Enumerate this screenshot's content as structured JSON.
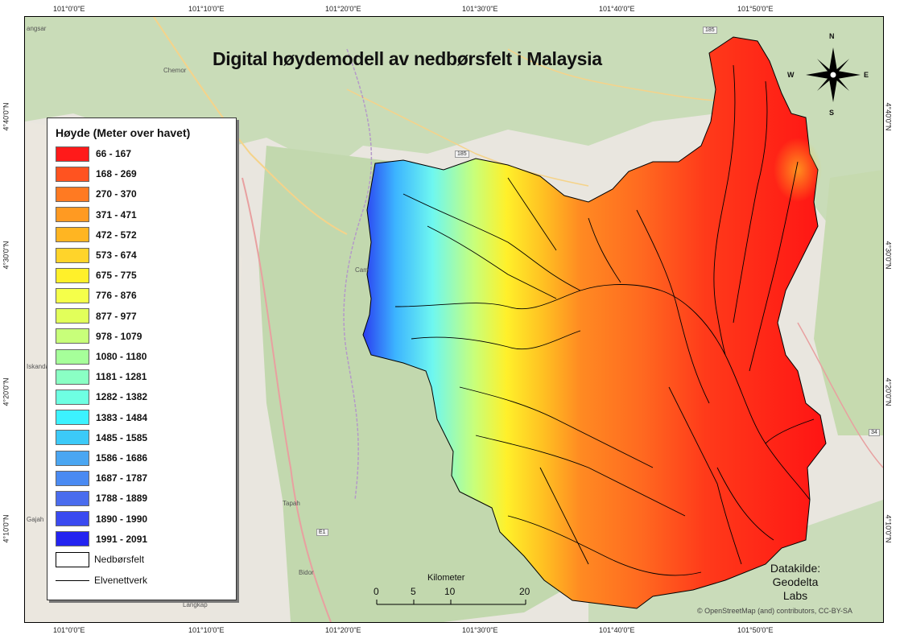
{
  "title": "Digital høydemodell av nedbørsfelt i Malaysia",
  "graticule": {
    "longitudes": [
      "101°0'0\"E",
      "101°10'0\"E",
      "101°20'0\"E",
      "101°30'0\"E",
      "101°40'0\"E",
      "101°50'0\"E"
    ],
    "latitudes": [
      "4°40'0\"N",
      "4°30'0\"N",
      "4°20'0\"N",
      "4°10'0\"N"
    ]
  },
  "legend": {
    "title": "Høyde (Meter over havet)",
    "classes": [
      {
        "label": "66 - 167",
        "color": "#ff1a1a"
      },
      {
        "label": "168 - 269",
        "color": "#ff5320"
      },
      {
        "label": "270 - 370",
        "color": "#ff7a22"
      },
      {
        "label": "371 - 471",
        "color": "#ff9a22"
      },
      {
        "label": "472 - 572",
        "color": "#ffb522"
      },
      {
        "label": "573 - 674",
        "color": "#ffd42a"
      },
      {
        "label": "675 - 775",
        "color": "#fff02a"
      },
      {
        "label": "776 - 876",
        "color": "#f5ff4a"
      },
      {
        "label": "877 - 977",
        "color": "#e2ff5a"
      },
      {
        "label": "978 - 1079",
        "color": "#c8ff7a"
      },
      {
        "label": "1080 - 1180",
        "color": "#a6ff9a"
      },
      {
        "label": "1181 - 1281",
        "color": "#8affc4"
      },
      {
        "label": "1282 - 1382",
        "color": "#6effe2"
      },
      {
        "label": "1383 - 1484",
        "color": "#3cf2ff"
      },
      {
        "label": "1485 - 1585",
        "color": "#3ccaf8"
      },
      {
        "label": "1586 - 1686",
        "color": "#4aa6f2"
      },
      {
        "label": "1687 - 1787",
        "color": "#4a8af2"
      },
      {
        "label": "1788 - 1889",
        "color": "#4a6cee"
      },
      {
        "label": "1890 - 1990",
        "color": "#3a4af0"
      },
      {
        "label": "1991 - 2091",
        "color": "#2323f0"
      }
    ],
    "catchment_label": "Nedbørsfelt",
    "river_label": "Elvenettverk"
  },
  "source": {
    "line1": "Datakilde: Geodelta",
    "line2": "Labs"
  },
  "scalebar": {
    "unit": "Kilometer",
    "labels": [
      "0",
      "5",
      "10",
      "20"
    ]
  },
  "attribution": "© OpenStreetMap (and) contributors, CC-BY-SA",
  "compass": {
    "n": "N",
    "s": "S",
    "e": "E",
    "w": "W"
  },
  "basemap_labels": {
    "roads": [
      "185",
      "185",
      "34",
      "E1"
    ],
    "places": [
      "angsar",
      "Chemor",
      "Gajah",
      "Tapah",
      "Bidor",
      "Iskanda",
      "Cam",
      "Langkap"
    ]
  }
}
